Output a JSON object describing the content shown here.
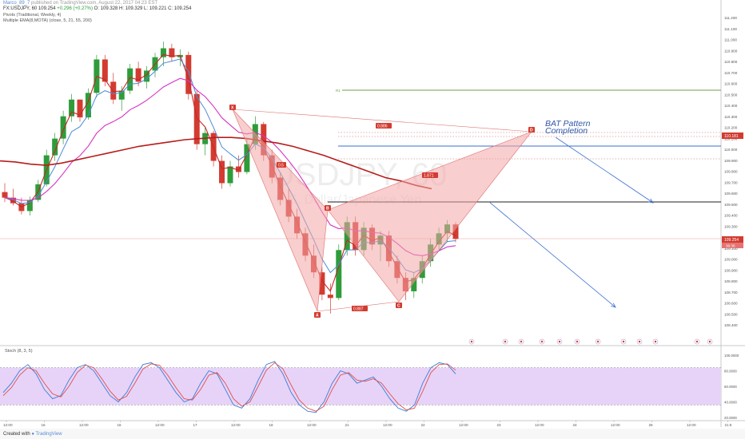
{
  "header": {
    "author": "Marco_89_7",
    "published": "published on TradingView.com, August 22, 2017 04:23 EST",
    "symbol_line": "FX:USDJPY, 60",
    "last": "109.254",
    "change_label": "+0.296 (+0.27%)",
    "ohlc": "O: 109.328  H: 109.329  L: 109.221  C: 109.254",
    "indicators": [
      "Pivots (Traditional, Weekly, 4)",
      "Multiple EMA(8,MOTA) (close, 5, 21, 55, 200)"
    ]
  },
  "watermark": {
    "symbol": "USDJPY, 60",
    "name": "U.S. Dollar/Japanese Yen"
  },
  "colors": {
    "bull": "#2e9c3a",
    "bear": "#d33b30",
    "ema_fast": "#c62828",
    "ema_mid": "#4b8bd6",
    "ema_slow": "#d633c4",
    "ema_200": "#b71c1c",
    "pattern_fill": "#f2a6a6",
    "pattern_line": "#e0706f",
    "stoch_k": "#3b7dd8",
    "stoch_d": "#e24e4e",
    "stoch_band": "#e7d3f7",
    "pivot": "#6aa34a",
    "level": "#3a6fd0"
  },
  "footer": {
    "created_with": "Created with",
    "brand": "TradingView"
  },
  "chart_data": [
    {
      "type": "line",
      "title": "USDJPY, 60",
      "y_axis_labels": [
        "111.200",
        "111.100",
        "111.000",
        "110.900",
        "110.800",
        "110.700",
        "110.600",
        "110.500",
        "110.400",
        "110.300",
        "110.200",
        "110.100",
        "110.000",
        "109.900",
        "109.800",
        "109.700",
        "109.600",
        "109.500",
        "109.400",
        "109.300",
        "109.200",
        "109.100",
        "109.000",
        "108.900",
        "108.800",
        "108.700",
        "108.600",
        "108.500",
        "108.400"
      ],
      "ylim": [
        108.35,
        111.25
      ],
      "x_tick_labels": [
        "12:00",
        "15",
        "12:00",
        "16",
        "12:00",
        "17",
        "12:00",
        "18",
        "12:00",
        "21",
        "12:00",
        "22",
        "12:00",
        "23",
        "12:00",
        "24",
        "12:00",
        "25",
        "12:00",
        "21:5"
      ],
      "candles": [
        [
          109.67,
          109.75,
          109.58,
          109.62
        ],
        [
          109.62,
          109.7,
          109.55,
          109.57
        ],
        [
          109.57,
          109.62,
          109.47,
          109.5
        ],
        [
          109.5,
          109.63,
          109.46,
          109.6
        ],
        [
          109.6,
          109.78,
          109.58,
          109.74
        ],
        [
          109.74,
          110.05,
          109.72,
          110.0
        ],
        [
          110.0,
          110.2,
          109.95,
          110.15
        ],
        [
          110.15,
          110.4,
          110.1,
          110.35
        ],
        [
          110.35,
          110.55,
          110.3,
          110.5
        ],
        [
          110.5,
          110.5,
          110.3,
          110.34
        ],
        [
          110.34,
          110.6,
          110.32,
          110.56
        ],
        [
          110.56,
          110.9,
          110.52,
          110.86
        ],
        [
          110.86,
          110.9,
          110.62,
          110.66
        ],
        [
          110.66,
          110.74,
          110.46,
          110.5
        ],
        [
          110.5,
          110.62,
          110.4,
          110.58
        ],
        [
          110.58,
          110.82,
          110.55,
          110.78
        ],
        [
          110.78,
          110.84,
          110.62,
          110.66
        ],
        [
          110.66,
          110.8,
          110.6,
          110.76
        ],
        [
          110.76,
          110.92,
          110.7,
          110.88
        ],
        [
          110.88,
          111.02,
          110.8,
          110.96
        ],
        [
          110.96,
          111.0,
          110.84,
          110.88
        ],
        [
          110.88,
          110.95,
          110.8,
          110.9
        ],
        [
          110.9,
          110.93,
          110.5,
          110.55
        ],
        [
          110.55,
          110.58,
          110.05,
          110.1
        ],
        [
          110.1,
          110.25,
          110.0,
          110.2
        ],
        [
          110.2,
          110.22,
          109.9,
          109.95
        ],
        [
          109.95,
          110.0,
          109.7,
          109.75
        ],
        [
          109.75,
          109.95,
          109.72,
          109.9
        ],
        [
          109.9,
          110.0,
          109.8,
          109.85
        ],
        [
          109.85,
          110.15,
          109.83,
          110.1
        ],
        [
          110.1,
          110.35,
          110.05,
          110.28
        ],
        [
          110.28,
          110.3,
          109.95,
          110.0
        ],
        [
          110.0,
          110.05,
          109.75,
          109.8
        ],
        [
          109.8,
          109.85,
          109.55,
          109.6
        ],
        [
          109.6,
          109.7,
          109.4,
          109.45
        ],
        [
          109.45,
          109.52,
          109.25,
          109.3
        ],
        [
          109.3,
          109.35,
          109.05,
          109.1
        ],
        [
          109.1,
          109.2,
          108.9,
          108.95
        ],
        [
          108.95,
          109.0,
          108.7,
          108.75
        ],
        [
          108.75,
          108.85,
          108.58,
          108.72
        ],
        [
          108.72,
          109.2,
          108.7,
          109.15
        ],
        [
          109.15,
          109.45,
          109.1,
          109.4
        ],
        [
          109.4,
          109.45,
          109.1,
          109.15
        ],
        [
          109.15,
          109.4,
          109.1,
          109.35
        ],
        [
          109.35,
          109.38,
          109.15,
          109.2
        ],
        [
          109.2,
          109.32,
          109.05,
          109.28
        ],
        [
          109.28,
          109.32,
          109.0,
          109.05
        ],
        [
          109.05,
          109.1,
          108.85,
          108.9
        ],
        [
          108.9,
          108.95,
          108.7,
          108.78
        ],
        [
          108.78,
          108.95,
          108.72,
          108.9
        ],
        [
          108.9,
          109.1,
          108.85,
          109.05
        ],
        [
          109.05,
          109.25,
          109.0,
          109.2
        ],
        [
          109.2,
          109.35,
          109.15,
          109.3
        ],
        [
          109.3,
          109.42,
          109.22,
          109.38
        ],
        [
          109.38,
          109.4,
          109.22,
          109.25
        ]
      ],
      "bat_pattern": {
        "points": [
          {
            "label": "X",
            "price": 110.35
          },
          {
            "label": "A",
            "price": 108.62
          },
          {
            "label": "B",
            "price": 109.5
          },
          {
            "label": "C",
            "price": 108.72
          },
          {
            "label": "D",
            "price": 110.2
          }
        ],
        "ratios": [
          "0.886",
          "0.5",
          "0.887",
          "1.871"
        ],
        "annotation": "BAT Pattern\nCompletion"
      },
      "price_labels": {
        "target": "110.181",
        "current": "109.254",
        "countdown": "36:36"
      },
      "pivot_level_label": "R1"
    },
    {
      "type": "line",
      "title": "Stoch (8, 3, 5)",
      "y_axis_labels": [
        "100.0000",
        "80.0000",
        "60.0000",
        "40.0000",
        "20.0000"
      ],
      "ylim": [
        0,
        100
      ],
      "bands": [
        80,
        20
      ],
      "series": [
        {
          "values": [
            40,
            55,
            75,
            85,
            70,
            45,
            30,
            35,
            60,
            80,
            85,
            75,
            55,
            35,
            25,
            40,
            65,
            85,
            88,
            80,
            60,
            40,
            25,
            30,
            55,
            75,
            70,
            45,
            20,
            15,
            30,
            60,
            85,
            90,
            70,
            40,
            20,
            10,
            8,
            25,
            55,
            75,
            70,
            55,
            60,
            65,
            50,
            30,
            15,
            10,
            20,
            55,
            80,
            88,
            85,
            70
          ]
        },
        {
          "values": [
            35,
            48,
            68,
            80,
            75,
            55,
            38,
            33,
            50,
            72,
            84,
            80,
            62,
            42,
            28,
            34,
            55,
            78,
            86,
            84,
            68,
            48,
            30,
            28,
            45,
            68,
            72,
            55,
            30,
            18,
            25,
            50,
            76,
            88,
            78,
            52,
            28,
            15,
            10,
            18,
            45,
            68,
            72,
            60,
            58,
            62,
            55,
            38,
            22,
            12,
            15,
            42,
            72,
            85,
            86,
            76
          ]
        }
      ]
    }
  ]
}
